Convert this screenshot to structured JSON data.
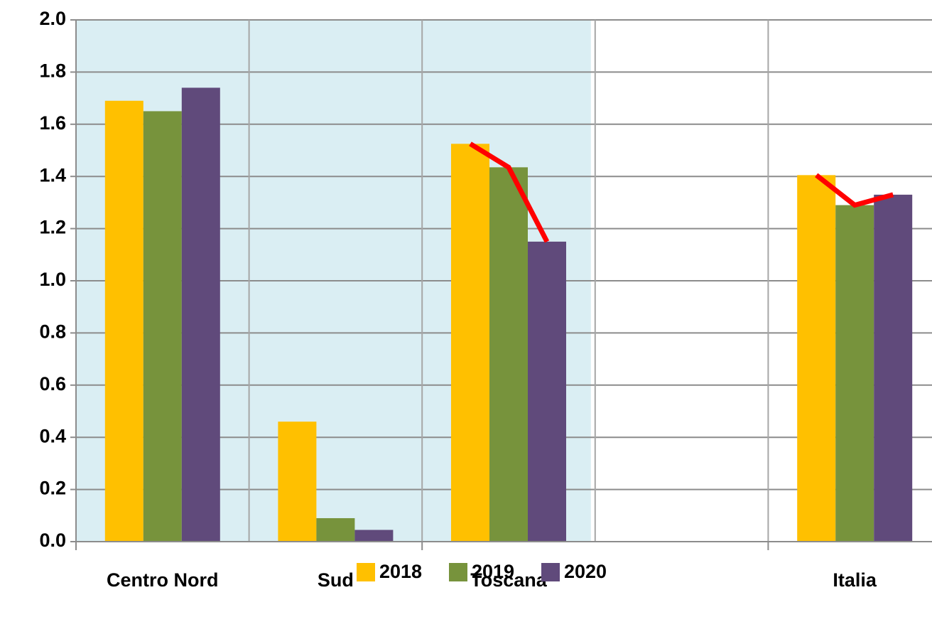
{
  "chart_data": {
    "type": "bar",
    "categories": [
      "Centro Nord",
      "Sud",
      "Toscana",
      null,
      "Italia"
    ],
    "series": [
      {
        "name": "2018",
        "color": "#ffc000",
        "values": [
          1.69,
          0.46,
          1.525,
          null,
          1.405
        ]
      },
      {
        "name": "2019",
        "color": "#77933c",
        "values": [
          1.65,
          0.09,
          1.435,
          null,
          1.29
        ]
      },
      {
        "name": "2020",
        "color": "#604a7b",
        "values": [
          1.74,
          0.045,
          1.15,
          null,
          1.33
        ]
      }
    ],
    "ylim": [
      0,
      2
    ],
    "yticks": [
      {
        "value": 0,
        "label": "0.0"
      },
      0.2,
      0.4,
      0.6,
      0.8,
      {
        "value": 1,
        "label": "1.0"
      },
      1.2,
      1.4,
      1.6,
      1.8,
      {
        "value": 2,
        "label": "2.0"
      }
    ],
    "grid": true,
    "legend": "bottom",
    "shaded_categories": [
      0,
      1,
      2
    ],
    "shade_color": "#daeef3",
    "highlight_categories": [
      2,
      4
    ],
    "highlight_color": "#ff0000"
  }
}
